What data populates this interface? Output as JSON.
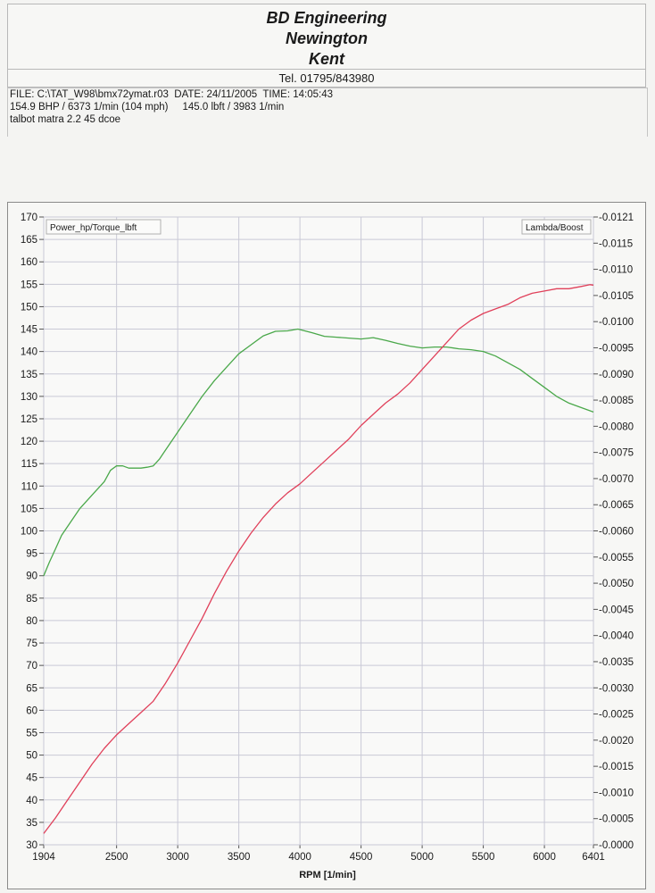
{
  "header": {
    "company_lines": [
      "BD Engineering",
      "Newington",
      "Kent"
    ],
    "tel": "Tel. 01795/843980"
  },
  "info": {
    "line1": "FILE: C:\\TAT_W98\\bmx72ymat.r03  DATE: 24/11/2005  TIME: 14:05:43",
    "line2": "154.9 BHP / 6373 1/min (104 mph)     145.0 lbft / 3983 1/min",
    "line3": "talbot matra 2.2 45 dcoe"
  },
  "chart_data": {
    "type": "line",
    "legend_left": "Power_hp/Torque_lbft",
    "legend_right": "Lambda/Boost",
    "xlabel": "RPM  [1/min]",
    "xlim": [
      1904,
      6401
    ],
    "ylim_left": [
      30,
      170
    ],
    "ylim_right": [
      0.0,
      0.0121
    ],
    "xticks": [
      1904,
      2500,
      3000,
      3500,
      4000,
      4500,
      5000,
      5500,
      6000,
      6401
    ],
    "yticks_left": [
      30,
      35,
      40,
      45,
      50,
      55,
      60,
      65,
      70,
      75,
      80,
      85,
      90,
      95,
      100,
      105,
      110,
      115,
      120,
      125,
      130,
      135,
      140,
      145,
      150,
      155,
      160,
      165,
      170
    ],
    "yticks_right": [
      "0.0000",
      "0.0005",
      "0.0010",
      "0.0015",
      "0.0020",
      "0.0025",
      "0.0030",
      "0.0035",
      "0.0040",
      "0.0045",
      "0.0050",
      "0.0055",
      "0.0060",
      "0.0065",
      "0.0070",
      "0.0075",
      "0.0080",
      "0.0085",
      "0.0090",
      "0.0095",
      "0.0100",
      "0.0105",
      "0.0110",
      "0.0115",
      "0.0121"
    ],
    "grid": true,
    "colors": {
      "power": "#e0405a",
      "torque": "#4aa84a",
      "grid": "#c9c9d6",
      "axis": "#555555"
    },
    "series": [
      {
        "key": "torque",
        "x": [
          1904,
          1950,
          2000,
          2050,
          2100,
          2200,
          2300,
          2400,
          2450,
          2500,
          2550,
          2600,
          2700,
          2750,
          2800,
          2850,
          2900,
          3000,
          3100,
          3200,
          3300,
          3400,
          3500,
          3600,
          3700,
          3800,
          3900,
          3983,
          4100,
          4200,
          4300,
          4400,
          4500,
          4600,
          4700,
          4800,
          4900,
          5000,
          5100,
          5200,
          5300,
          5400,
          5500,
          5600,
          5700,
          5800,
          5900,
          6000,
          6100,
          6200,
          6300,
          6401
        ],
        "y": [
          90,
          93,
          96,
          99,
          101,
          105,
          108,
          111,
          113.5,
          114.5,
          114.5,
          114,
          114,
          114.2,
          114.5,
          116,
          118,
          122,
          126,
          130,
          133.5,
          136.5,
          139.5,
          141.5,
          143.5,
          144.5,
          144.6,
          145.0,
          144.2,
          143.4,
          143.2,
          143.0,
          142.8,
          143.1,
          142.5,
          141.8,
          141.2,
          140.8,
          141.0,
          141.0,
          140.6,
          140.4,
          140.0,
          139.0,
          137.5,
          136.0,
          134.0,
          132.0,
          130.0,
          128.5,
          127.5,
          126.5
        ]
      },
      {
        "key": "power",
        "x": [
          1904,
          2000,
          2100,
          2200,
          2300,
          2400,
          2500,
          2600,
          2700,
          2800,
          2900,
          3000,
          3100,
          3200,
          3300,
          3400,
          3500,
          3600,
          3700,
          3800,
          3900,
          4000,
          4100,
          4200,
          4300,
          4400,
          4500,
          4600,
          4700,
          4800,
          4900,
          5000,
          5100,
          5200,
          5300,
          5400,
          5500,
          5600,
          5700,
          5800,
          5900,
          6000,
          6100,
          6200,
          6300,
          6373,
          6401
        ],
        "y": [
          32.5,
          36,
          40,
          44,
          48,
          51.5,
          54.5,
          57,
          59.5,
          62,
          66,
          70.5,
          75.5,
          80.5,
          86,
          91,
          95.5,
          99.5,
          103,
          106,
          108.5,
          110.5,
          113,
          115.5,
          118,
          120.5,
          123.5,
          126,
          128.5,
          130.5,
          133,
          136,
          139,
          142,
          145,
          147,
          148.5,
          149.5,
          150.5,
          152,
          153,
          153.5,
          154,
          154,
          154.5,
          154.9,
          154.8
        ]
      }
    ]
  }
}
